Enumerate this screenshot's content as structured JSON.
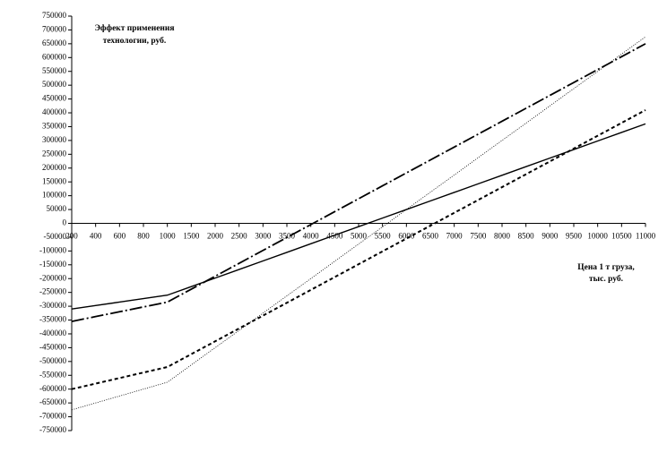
{
  "chart_data": {
    "type": "line",
    "ylabel": [
      "Эффект применения",
      "технологии, руб."
    ],
    "xlabel": [
      "Цена 1 т груза,",
      "тыс. руб."
    ],
    "categories": [
      "200",
      "400",
      "600",
      "800",
      "1000",
      "1500",
      "2000",
      "2500",
      "3000",
      "3500",
      "4000",
      "4500",
      "5000",
      "5500",
      "6000",
      "6500",
      "7000",
      "7500",
      "8000",
      "8500",
      "9000",
      "9500",
      "10000",
      "10500",
      "11000"
    ],
    "series": [
      {
        "color": "#000000",
        "style": "solid",
        "values": [
          -310000,
          -297500,
          -285000,
          -272500,
          -260000,
          -229000,
          -198000,
          -167000,
          -136000,
          -105000,
          -74000,
          -43000,
          -12000,
          19000,
          50000,
          81000,
          112000,
          143000,
          174000,
          205000,
          236000,
          267000,
          298000,
          329000,
          360000
        ]
      },
      {
        "color": "#000000",
        "style": "dashdot",
        "values": [
          -355000,
          -337500,
          -320000,
          -302500,
          -285000,
          -238250,
          -191500,
          -144750,
          -98000,
          -51250,
          -4500,
          42250,
          89000,
          135750,
          182500,
          229250,
          276000,
          322750,
          369500,
          416250,
          463000,
          509750,
          556500,
          603250,
          650000
        ]
      },
      {
        "color": "#000000",
        "style": "dotted",
        "values": [
          -675000,
          -650000,
          -625000,
          -600000,
          -575000,
          -512500,
          -450000,
          -387500,
          -325000,
          -262500,
          -200000,
          -137500,
          -75000,
          -12500,
          50000,
          112500,
          175000,
          237500,
          300000,
          362500,
          425000,
          487500,
          550000,
          612500,
          675000
        ]
      },
      {
        "color": "#000000",
        "style": "dashed",
        "values": [
          -600000,
          -580000,
          -560000,
          -540000,
          -520000,
          -473500,
          -427000,
          -380500,
          -334000,
          -287500,
          -241000,
          -194500,
          -148000,
          -101500,
          -55000,
          -8500,
          38000,
          84500,
          131000,
          177500,
          224000,
          270500,
          317000,
          363500,
          410000
        ]
      }
    ],
    "ylim": [
      -750000,
      750000
    ],
    "yticks": [
      -750000,
      -700000,
      -650000,
      -600000,
      -550000,
      -500000,
      -450000,
      -400000,
      -350000,
      -300000,
      -250000,
      -200000,
      -150000,
      -100000,
      -50000,
      0,
      50000,
      100000,
      150000,
      200000,
      250000,
      300000,
      350000,
      400000,
      450000,
      500000,
      550000,
      600000,
      650000,
      700000,
      750000
    ],
    "grid": false
  }
}
